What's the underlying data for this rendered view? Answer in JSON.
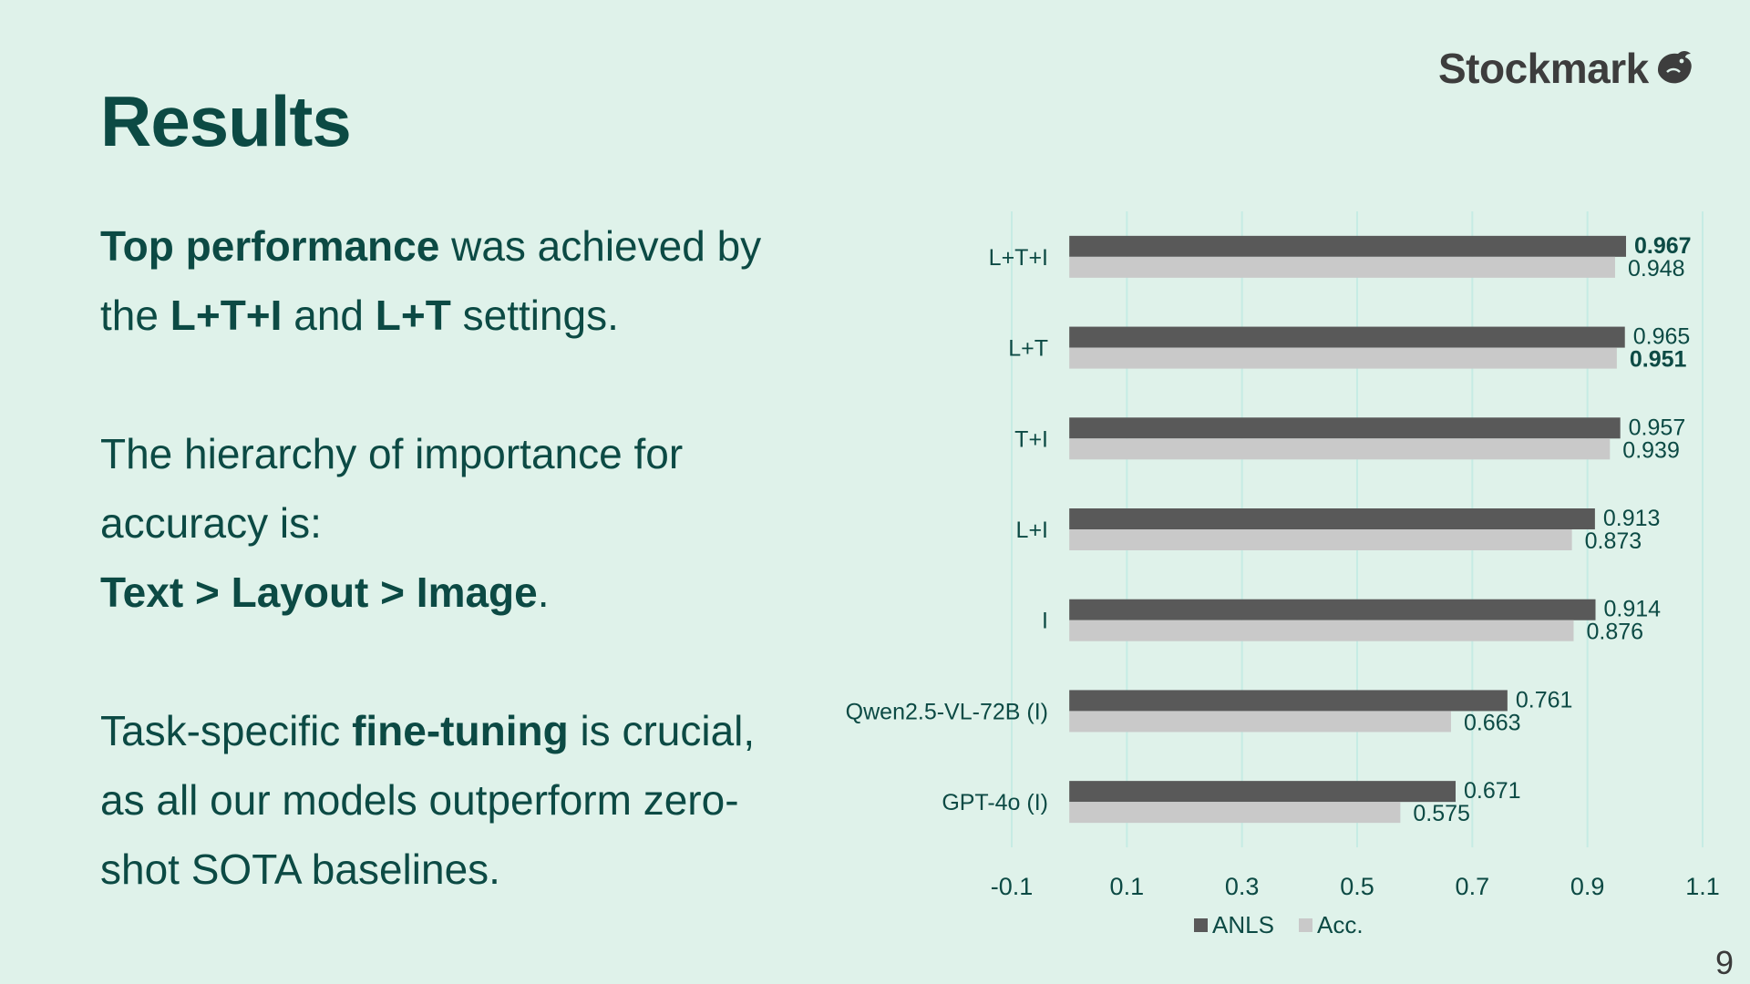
{
  "slide": {
    "title": "Results",
    "logo_text": "Stockmark",
    "logo_icon": "stockmark-bird-logo",
    "page_number": "9"
  },
  "body": {
    "p1_bold_1": "Top performance",
    "p1_text_1": " was achieved by the ",
    "p1_bold_2": "L+T+I",
    "p1_text_2": " and ",
    "p1_bold_3": "L+T",
    "p1_text_3": " settings.",
    "p2_text_1": "The hierarchy of importance for accuracy is:",
    "p2_bold_1": "Text > Layout > Image",
    "p2_text_2": ".",
    "p3_text_1": "Task-specific ",
    "p3_bold_1": "fine-tuning",
    "p3_text_2": " is crucial, as all our models outperform zero-shot SOTA baselines."
  },
  "colors": {
    "background": "#dff2ea",
    "text": "#0c4a44",
    "anls_bar": "#595959",
    "acc_bar": "#c9c9c9",
    "gridline": "#c6ece4"
  },
  "chart_data": {
    "type": "bar",
    "orientation": "horizontal",
    "categories": [
      "L+T+I",
      "L+T",
      "T+I",
      "L+I",
      "I",
      "Qwen2.5-VL-72B (I)",
      "GPT-4o (I)"
    ],
    "series": [
      {
        "name": "ANLS",
        "values": [
          0.967,
          0.965,
          0.957,
          0.913,
          0.914,
          0.761,
          0.671
        ]
      },
      {
        "name": "Acc.",
        "values": [
          0.948,
          0.951,
          0.939,
          0.873,
          0.876,
          0.663,
          0.575
        ]
      }
    ],
    "data_labels": [
      [
        "0.967",
        "0.965",
        "0.957",
        "0.913",
        "0.914",
        "0.761",
        "0.671"
      ],
      [
        "0.948",
        "0.951",
        "0.939",
        "0.873",
        "0.876",
        "0.663",
        "0.575"
      ]
    ],
    "bold_labels": [
      [
        true,
        false,
        false,
        false,
        false,
        false,
        false
      ],
      [
        false,
        true,
        false,
        false,
        false,
        false,
        false
      ]
    ],
    "x_ticks": [
      "-0.1",
      "0.1",
      "0.3",
      "0.5",
      "0.7",
      "0.9",
      "1.1"
    ],
    "x_tick_values": [
      -0.1,
      0.1,
      0.3,
      0.5,
      0.7,
      0.9,
      1.1
    ],
    "xlim": [
      -0.1,
      1.1
    ],
    "baseline": 0,
    "grid": true,
    "legend_position": "bottom",
    "title": "",
    "xlabel": "",
    "ylabel": ""
  }
}
